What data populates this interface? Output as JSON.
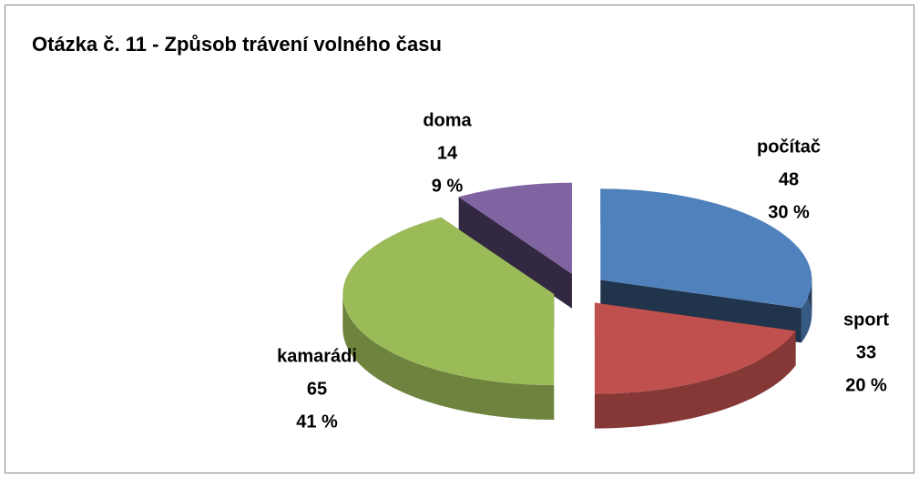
{
  "chart_data": {
    "type": "pie",
    "title": "Otázka č. 11 - Způsob trávení volného času",
    "categories": [
      "počítač",
      "sport",
      "kamarádi",
      "doma"
    ],
    "counts": [
      48,
      33,
      65,
      14
    ],
    "values": [
      30,
      20,
      41,
      9
    ],
    "value_labels": [
      "30 %",
      "20 %",
      "41 %",
      "9 %"
    ],
    "colors": [
      "#4f81bd",
      "#c0504d",
      "#9bbb59",
      "#8064a2"
    ]
  }
}
